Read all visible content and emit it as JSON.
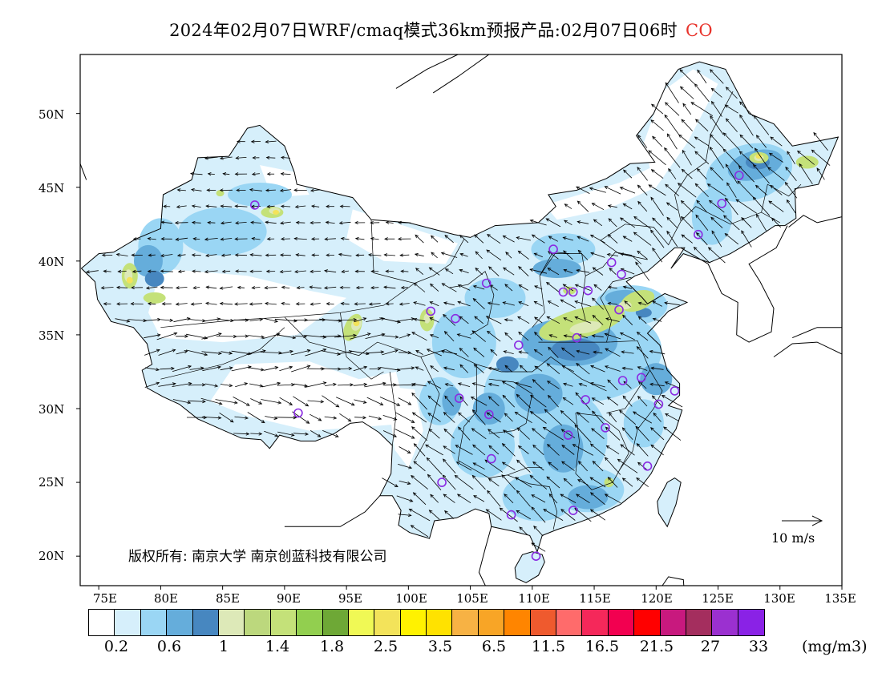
{
  "title": {
    "main": "2024年02月07日WRF/cmaq模式36km预报产品:02月07日06时",
    "pollutant": "CO"
  },
  "colors": {
    "pollutant_title": "#e8322a",
    "station_marker": "#8a2be2",
    "boundary": "#000000"
  },
  "lat_labels": [
    "50N",
    "45N",
    "40N",
    "35N",
    "30N",
    "25N",
    "20N"
  ],
  "lon_labels": [
    "75E",
    "80E",
    "85E",
    "90E",
    "95E",
    "100E",
    "105E",
    "110E",
    "115E",
    "120E",
    "125E",
    "130E",
    "135E"
  ],
  "wind_scale_label": "10 m/s",
  "copyright": "版权所有: 南京大学 南京创蓝科技有限公司",
  "legend": {
    "colors": [
      "#ffffff",
      "#d6effb",
      "#9ad6f4",
      "#65addb",
      "#4787c0",
      "#dde9b8",
      "#bcd87d",
      "#c4e179",
      "#92cf4f",
      "#6ea836",
      "#f0f955",
      "#f3e35a",
      "#fff200",
      "#ffe200",
      "#f7b244",
      "#f8a526",
      "#ff8500",
      "#ef5a2e",
      "#ff6b6b",
      "#f5285a",
      "#f20050",
      "#ff0000",
      "#c8197e",
      "#a42e5e",
      "#9b30d0",
      "#8a22e6"
    ],
    "labels": [
      "0.2",
      "0.6",
      "1",
      "1.4",
      "1.8",
      "2.5",
      "3.5",
      "6.5",
      "11.5",
      "16.5",
      "21.5",
      "27",
      "33"
    ],
    "unit": "(mg/m3)"
  },
  "stations": [
    {
      "lon": 126.7,
      "lat": 45.8
    },
    {
      "lon": 125.3,
      "lat": 43.9
    },
    {
      "lon": 123.4,
      "lat": 41.8
    },
    {
      "lon": 87.6,
      "lat": 43.8
    },
    {
      "lon": 111.7,
      "lat": 40.8
    },
    {
      "lon": 116.4,
      "lat": 39.9
    },
    {
      "lon": 117.2,
      "lat": 39.1
    },
    {
      "lon": 114.5,
      "lat": 38.0
    },
    {
      "lon": 112.5,
      "lat": 37.9
    },
    {
      "lon": 113.3,
      "lat": 37.9
    },
    {
      "lon": 106.3,
      "lat": 38.5
    },
    {
      "lon": 103.8,
      "lat": 36.1
    },
    {
      "lon": 101.8,
      "lat": 36.6
    },
    {
      "lon": 117.0,
      "lat": 36.7
    },
    {
      "lon": 113.6,
      "lat": 34.8
    },
    {
      "lon": 108.9,
      "lat": 34.3
    },
    {
      "lon": 117.3,
      "lat": 31.9
    },
    {
      "lon": 118.8,
      "lat": 32.1
    },
    {
      "lon": 121.5,
      "lat": 31.2
    },
    {
      "lon": 120.2,
      "lat": 30.3
    },
    {
      "lon": 114.3,
      "lat": 30.6
    },
    {
      "lon": 104.1,
      "lat": 30.7
    },
    {
      "lon": 106.5,
      "lat": 29.6
    },
    {
      "lon": 91.1,
      "lat": 29.7
    },
    {
      "lon": 112.9,
      "lat": 28.2
    },
    {
      "lon": 115.9,
      "lat": 28.7
    },
    {
      "lon": 106.7,
      "lat": 26.6
    },
    {
      "lon": 119.3,
      "lat": 26.1
    },
    {
      "lon": 102.7,
      "lat": 25.0
    },
    {
      "lon": 113.3,
      "lat": 23.1
    },
    {
      "lon": 108.3,
      "lat": 22.8
    },
    {
      "lon": 110.3,
      "lat": 20.0
    }
  ]
}
